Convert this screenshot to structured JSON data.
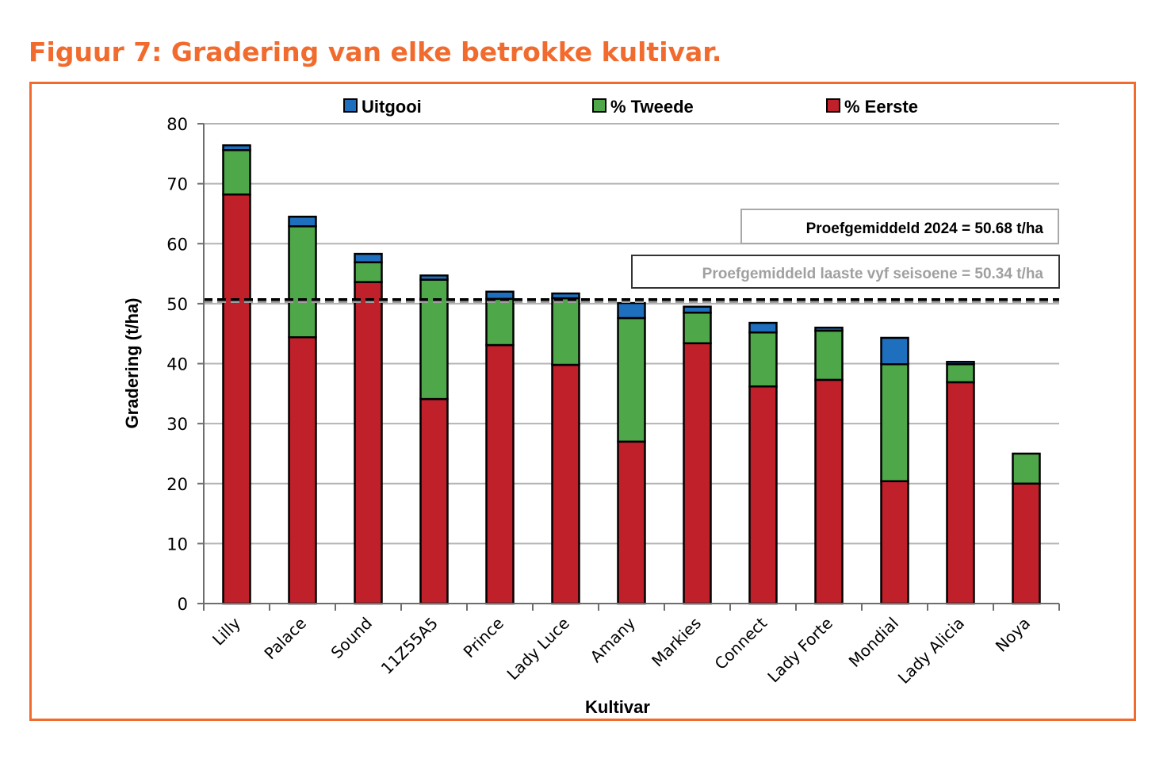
{
  "figure_title": "Figuur 7: Gradering van elke betrokke kultivar.",
  "colors": {
    "accent": "#f26b2e",
    "uitgooi": "#1f6fbf",
    "tweede": "#4ea84a",
    "eerste": "#c0202a",
    "avg_2024": "#000000",
    "avg_5yr": "#a0a0a0"
  },
  "chart_data": {
    "type": "bar",
    "stacked": true,
    "title": "",
    "xlabel": "Kultivar",
    "ylabel": "Gradering (t/ha)",
    "ylim": [
      0,
      80
    ],
    "yticks": [
      0,
      10,
      20,
      30,
      40,
      50,
      60,
      70,
      80
    ],
    "grid": true,
    "legend_position": "top",
    "categories": [
      "Lilly",
      "Palace",
      "Sound",
      "11Z55A5",
      "Prince",
      "Lady Luce",
      "Amany",
      "Markies",
      "Connect",
      "Lady Forte",
      "Mondial",
      "Lady Alicia",
      "Noya"
    ],
    "legend": [
      "Uitgooi",
      "% Tweede",
      "% Eerste"
    ],
    "series": [
      {
        "name": "% Eerste",
        "color_key": "eerste",
        "values": [
          68.2,
          44.4,
          53.6,
          34.1,
          43.1,
          39.8,
          27.0,
          43.4,
          36.2,
          37.3,
          20.4,
          36.9,
          20.0
        ]
      },
      {
        "name": "% Tweede",
        "color_key": "tweede",
        "values": [
          7.4,
          18.5,
          3.3,
          19.9,
          7.7,
          11.1,
          20.6,
          5.1,
          9.0,
          8.2,
          19.5,
          3.0,
          5.0
        ]
      },
      {
        "name": "Uitgooi",
        "color_key": "uitgooi",
        "values": [
          0.8,
          1.6,
          1.4,
          0.7,
          1.2,
          0.8,
          2.5,
          1.0,
          1.6,
          0.5,
          4.4,
          0.4,
          0.0
        ]
      }
    ],
    "reference_lines": [
      {
        "label": "Proefgemiddeld 2024 = 50.68 t/ha",
        "value": 50.68,
        "color_key": "avg_2024"
      },
      {
        "label": "Proefgemiddeld laaste vyf seisoene = 50.34 t/ha",
        "value": 50.34,
        "color_key": "avg_5yr"
      }
    ]
  }
}
